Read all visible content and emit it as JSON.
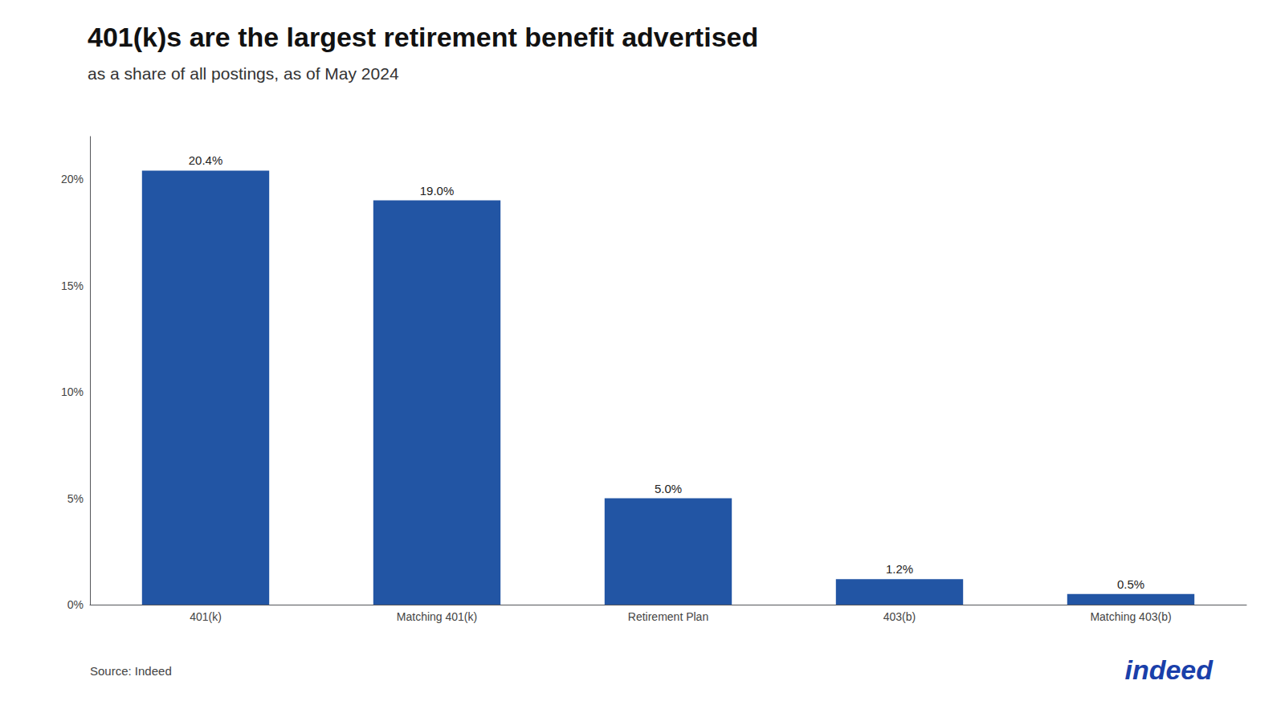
{
  "chart_data": {
    "type": "bar",
    "title": "401(k)s are the largest retirement benefit advertised",
    "subtitle": "as a share of all postings, as of May 2024",
    "categories": [
      "401(k)",
      "Matching 401(k)",
      "Retirement Plan",
      "403(b)",
      "Matching 403(b)"
    ],
    "values": [
      20.4,
      19.0,
      5.0,
      1.2,
      0.5
    ],
    "value_labels": [
      "20.4%",
      "19.0%",
      "5.0%",
      "1.2%",
      "0.5%"
    ],
    "data_labels": true,
    "color": "#2255a4",
    "ylim": [
      0,
      22
    ],
    "yticks": [
      {
        "value": 0,
        "label": "0%"
      },
      {
        "value": 5,
        "label": "5%"
      },
      {
        "value": 10,
        "label": "10%"
      },
      {
        "value": 15,
        "label": "15%"
      },
      {
        "value": 20,
        "label": "20%"
      }
    ],
    "grid": false,
    "annotations": [
      {
        "text": "Source: Indeed"
      },
      {
        "text": "indeed",
        "color": "#1a3faa"
      }
    ]
  }
}
